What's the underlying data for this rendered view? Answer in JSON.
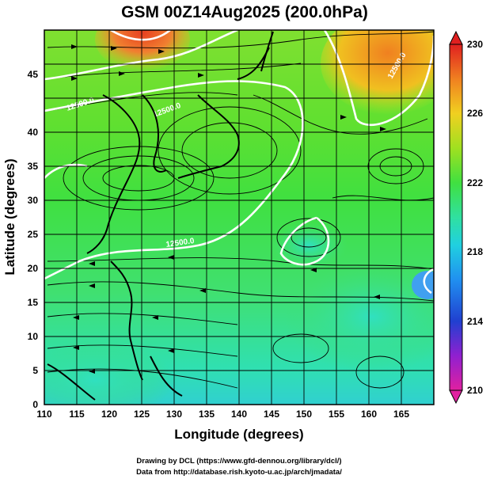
{
  "title": "GSM 00Z14Aug2025 (200.0hPa)",
  "xlabel": "Longitude (degrees)",
  "ylabel": "Latitude  (degrees)",
  "credits": [
    "Drawing by DCL (https://www.gfd-dennou.org/library/dcl/)",
    "Data from http://database.rish.kyoto-u.ac.jp/arch/jmadata/"
  ],
  "map": {
    "projection": "cylindrical",
    "lon_range": [
      110,
      170
    ],
    "lat_range": [
      0,
      50
    ],
    "x_ticks": [
      "110",
      "115",
      "120",
      "125",
      "130",
      "135",
      "140",
      "145",
      "150",
      "155",
      "160",
      "165"
    ],
    "y_ticks": [
      "0",
      "5",
      "10",
      "15",
      "20",
      "25",
      "30",
      "35",
      "40",
      "45"
    ],
    "grid_spacing_deg": 5,
    "shaded_field": "temperature-like scalar (color shading)",
    "contour_labels": [
      "12500.0",
      "12500.0",
      "12500.0",
      "12500.0"
    ]
  },
  "colorbar": {
    "min": 210,
    "max": 230,
    "ticks": [
      "210",
      "214",
      "218",
      "222",
      "226",
      "230"
    ],
    "colors": [
      "#e020a0",
      "#7020e0",
      "#2040e0",
      "#20a0f0",
      "#20e0c0",
      "#40e040",
      "#a0e020",
      "#f0d020",
      "#f08020",
      "#e02020"
    ]
  }
}
